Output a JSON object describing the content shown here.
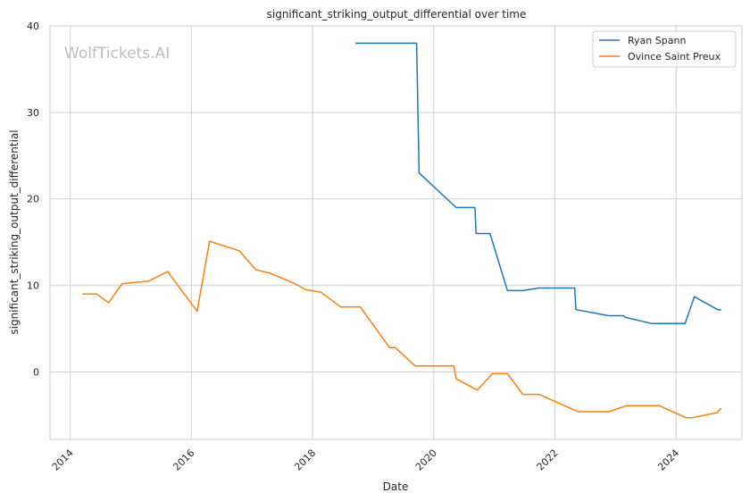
{
  "chart_data": {
    "type": "line",
    "title": "significant_striking_output_differential over time",
    "xlabel": "Date",
    "ylabel": "significant_striking_output_differential",
    "watermark": "WolfTickets.AI",
    "x_axis_type": "date",
    "xlim": [
      "2013-09-01",
      "2025-02-01"
    ],
    "ylim": [
      -7.8,
      40
    ],
    "x_ticks": [
      "2014",
      "2016",
      "2018",
      "2020",
      "2022",
      "2024"
    ],
    "y_ticks": [
      0,
      10,
      20,
      30,
      40
    ],
    "grid": true,
    "legend_position": "top-right",
    "series": [
      {
        "name": "Ryan Spann",
        "color": "#1f77b4",
        "points": [
          [
            "2018-09-15",
            38.0
          ],
          [
            "2019-09-20",
            38.0
          ],
          [
            "2019-10-05",
            23.0
          ],
          [
            "2020-05-15",
            19.0
          ],
          [
            "2020-09-05",
            19.0
          ],
          [
            "2020-09-12",
            16.0
          ],
          [
            "2020-12-05",
            16.0
          ],
          [
            "2021-03-20",
            9.4
          ],
          [
            "2021-06-20",
            9.4
          ],
          [
            "2021-09-25",
            9.7
          ],
          [
            "2022-04-30",
            9.7
          ],
          [
            "2022-05-07",
            7.2
          ],
          [
            "2022-11-20",
            6.5
          ],
          [
            "2023-02-18",
            6.5
          ],
          [
            "2023-03-01",
            6.3
          ],
          [
            "2023-08-05",
            5.6
          ],
          [
            "2024-02-24",
            5.6
          ],
          [
            "2024-04-20",
            8.7
          ],
          [
            "2024-09-07",
            7.2
          ],
          [
            "2024-09-28",
            7.2
          ]
        ]
      },
      {
        "name": "Ovince Saint Preux",
        "color": "#ff7f0e",
        "points": [
          [
            "2014-03-15",
            9.0
          ],
          [
            "2014-06-10",
            9.0
          ],
          [
            "2014-08-20",
            8.0
          ],
          [
            "2014-11-10",
            10.2
          ],
          [
            "2015-04-20",
            10.5
          ],
          [
            "2015-08-10",
            11.6
          ],
          [
            "2016-02-05",
            7.0
          ],
          [
            "2016-04-20",
            15.1
          ],
          [
            "2016-10-15",
            14.0
          ],
          [
            "2017-01-25",
            11.8
          ],
          [
            "2017-04-20",
            11.4
          ],
          [
            "2017-09-15",
            10.2
          ],
          [
            "2017-11-20",
            9.5
          ],
          [
            "2018-02-20",
            9.2
          ],
          [
            "2018-06-20",
            7.5
          ],
          [
            "2018-10-15",
            7.5
          ],
          [
            "2019-04-10",
            2.8
          ],
          [
            "2019-05-15",
            2.8
          ],
          [
            "2019-09-10",
            0.7
          ],
          [
            "2020-05-01",
            0.7
          ],
          [
            "2020-05-15",
            -0.8
          ],
          [
            "2020-09-20",
            -2.1
          ],
          [
            "2020-12-20",
            -0.2
          ],
          [
            "2021-03-20",
            -0.2
          ],
          [
            "2021-06-20",
            -2.6
          ],
          [
            "2021-09-25",
            -2.6
          ],
          [
            "2022-05-20",
            -4.6
          ],
          [
            "2022-11-20",
            -4.6
          ],
          [
            "2023-03-10",
            -3.9
          ],
          [
            "2023-09-20",
            -3.9
          ],
          [
            "2024-03-01",
            -5.3
          ],
          [
            "2024-04-05",
            -5.3
          ],
          [
            "2024-09-05",
            -4.7
          ],
          [
            "2024-09-28",
            -4.2
          ]
        ]
      }
    ]
  }
}
